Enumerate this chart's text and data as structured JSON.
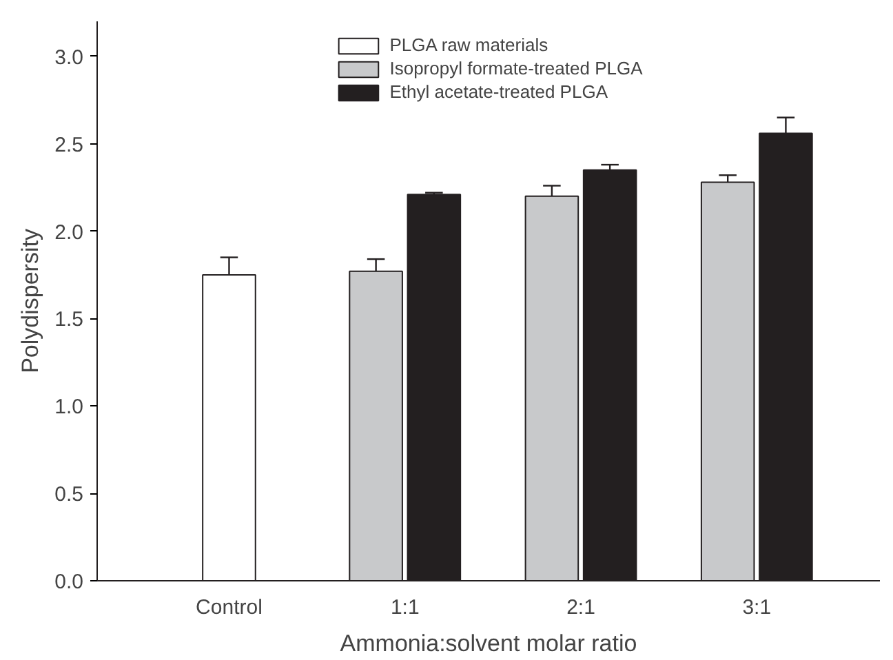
{
  "chart_data": {
    "type": "bar",
    "categories": [
      "Control",
      "1:1",
      "2:1",
      "3:1"
    ],
    "xlabel": "Ammonia:solvent molar ratio",
    "ylabel": "Polydispersity",
    "ylim": [
      0,
      3.2
    ],
    "yticks": [
      {
        "value": 0,
        "label": "0.0"
      },
      {
        "value": 0.5,
        "label": "0.5"
      },
      {
        "value": 1,
        "label": "1.0"
      },
      {
        "value": 1.5,
        "label": "1.5"
      },
      {
        "value": 2,
        "label": "2.0"
      },
      {
        "value": 2.5,
        "label": "2.5"
      },
      {
        "value": 3,
        "label": "3.0"
      }
    ],
    "series": [
      {
        "name": "PLGA raw materials",
        "color": "#ffffff",
        "values": [
          1.75,
          null,
          null,
          null
        ],
        "errors": [
          [
            1.75,
            1.85
          ],
          null,
          null,
          null
        ]
      },
      {
        "name": "Isopropyl formate-treated PLGA",
        "color": "#c8c9cb",
        "values": [
          null,
          1.77,
          2.2,
          2.28
        ],
        "errors": [
          null,
          [
            1.77,
            1.84
          ],
          [
            2.2,
            2.26
          ],
          [
            2.28,
            2.32
          ]
        ]
      },
      {
        "name": "Ethyl acetate-treated PLGA",
        "color": "#231f20",
        "values": [
          null,
          2.21,
          2.35,
          2.56
        ],
        "errors": [
          null,
          [
            2.21,
            2.22
          ],
          [
            2.35,
            2.38
          ],
          [
            2.56,
            2.65
          ]
        ]
      }
    ],
    "legend": "top",
    "grid": false
  }
}
